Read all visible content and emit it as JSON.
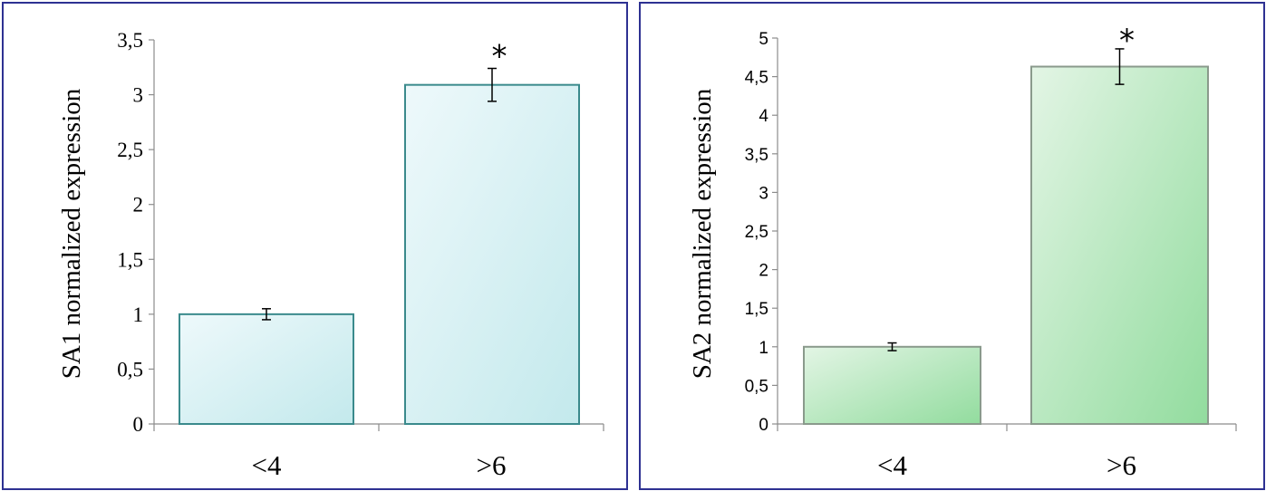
{
  "chart_data": [
    {
      "type": "bar",
      "categories": [
        "<4",
        ">6"
      ],
      "values": [
        1.0,
        3.09
      ],
      "errors": [
        0.05,
        0.15
      ],
      "significance": [
        "",
        "*"
      ],
      "title": "",
      "xlabel": "",
      "ylabel": "SA1 normalized expression",
      "ylim": [
        0,
        3.5
      ],
      "yticks": [
        "0",
        "0,5",
        "1",
        "1,5",
        "2",
        "2,5",
        "3",
        "3,5"
      ],
      "grid": false,
      "bar_color": "#cdeef0"
    },
    {
      "type": "bar",
      "categories": [
        "<4",
        ">6"
      ],
      "values": [
        1.0,
        4.63
      ],
      "errors": [
        0.05,
        0.23
      ],
      "significance": [
        "",
        "*"
      ],
      "title": "",
      "xlabel": "",
      "ylabel": "SA2 normalized expression",
      "ylim": [
        0,
        5
      ],
      "yticks": [
        "0",
        "0,5",
        "1",
        "1,5",
        "2",
        "2,5",
        "3",
        "3,5",
        "4",
        "4,5",
        "5"
      ],
      "grid": false,
      "bar_color": "#a8e0b0"
    }
  ],
  "colors": {
    "frame": "#2e3192",
    "chart1_bar_stroke": "#3a8a8c",
    "chart2_bar_stroke": "#8a9a8c"
  }
}
